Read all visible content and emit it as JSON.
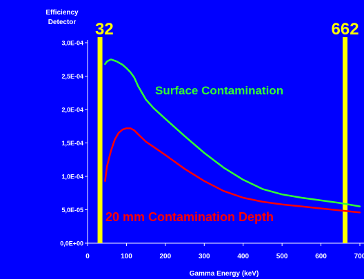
{
  "chart_data": {
    "type": "line",
    "title": "",
    "ylabel_lines": [
      "Efficiency",
      "Detector"
    ],
    "xlabel": "Gamma Energy (keV)",
    "xlim": [
      0,
      700
    ],
    "ylim": [
      0,
      0.0003
    ],
    "x_ticks": [
      0,
      100,
      200,
      300,
      400,
      500,
      600,
      700
    ],
    "x_tick_labels": [
      "0",
      "100",
      "200",
      "300",
      "400",
      "500",
      "600",
      "700"
    ],
    "y_ticks": [
      0,
      5e-05,
      0.0001,
      0.00015,
      0.0002,
      0.00025,
      0.0003
    ],
    "y_tick_labels": [
      "0,0E+00",
      "5,0E-05",
      "1,0E-04",
      "1,5E-04",
      "2,0E-04",
      "2,5E-04",
      "3,0E-04"
    ],
    "grid": false,
    "vertical_markers": [
      {
        "x": 32,
        "label": "32",
        "color": "#ffff00"
      },
      {
        "x": 662,
        "label": "662",
        "color": "#ffff00"
      }
    ],
    "series": [
      {
        "name": "Surface Contamination",
        "color": "#33ff33",
        "x": [
          45,
          50,
          60,
          75,
          90,
          100,
          110,
          120,
          130,
          150,
          170,
          200,
          250,
          300,
          350,
          400,
          450,
          500,
          550,
          600,
          650,
          700
        ],
        "y": [
          0.000268,
          0.000272,
          0.000275,
          0.000272,
          0.000267,
          0.000262,
          0.000256,
          0.000248,
          0.000235,
          0.000215,
          0.000202,
          0.000186,
          0.00016,
          0.000135,
          0.000113,
          9.5e-05,
          8.1e-05,
          7.3e-05,
          6.8e-05,
          6.4e-05,
          6e-05,
          5.5e-05
        ]
      },
      {
        "name": "20 mm Contamination Depth",
        "color": "#ff0000",
        "x": [
          45,
          50,
          60,
          70,
          80,
          90,
          100,
          110,
          120,
          130,
          150,
          175,
          200,
          250,
          300,
          350,
          400,
          450,
          500,
          550,
          600,
          650,
          700
        ],
        "y": [
          9.3e-05,
          0.000115,
          0.000138,
          0.000155,
          0.000165,
          0.00017,
          0.000172,
          0.000172,
          0.000169,
          0.000163,
          0.000152,
          0.000142,
          0.000132,
          0.000111,
          9.3e-05,
          7.8e-05,
          6.8e-05,
          6.2e-05,
          5.8e-05,
          5.5e-05,
          5.2e-05,
          4.9e-05,
          4.6e-05
        ]
      }
    ]
  }
}
